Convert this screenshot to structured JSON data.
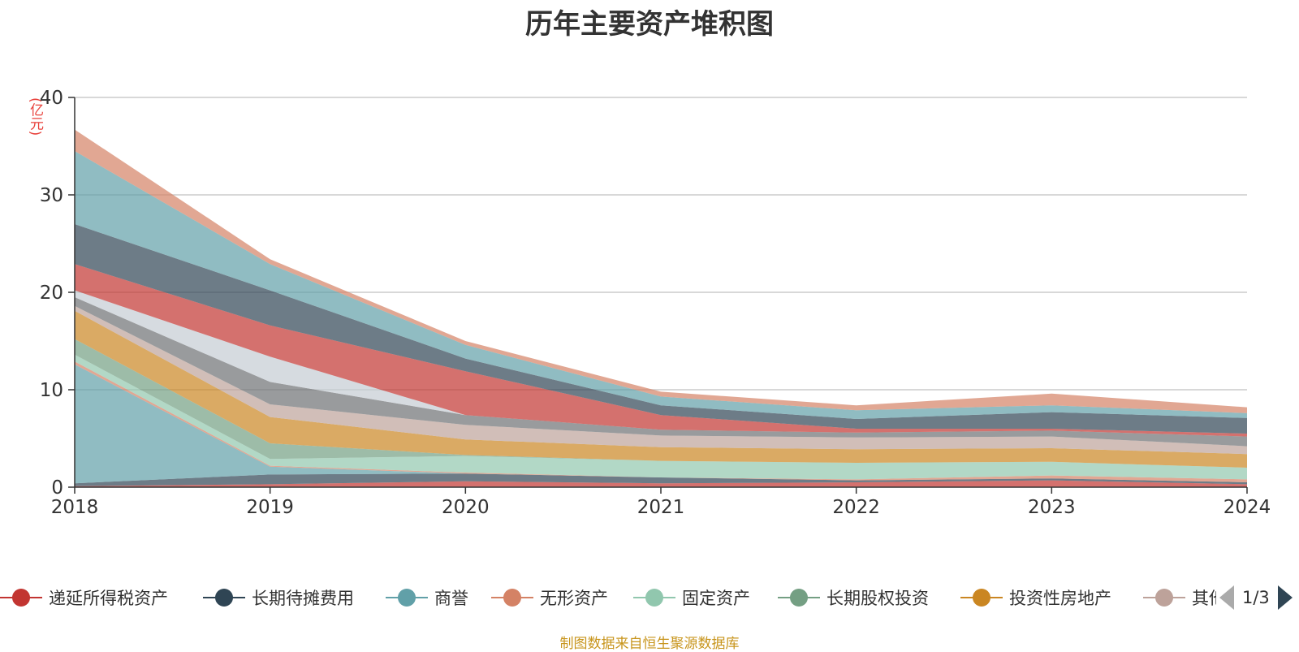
{
  "title": "历年主要资产堆积图",
  "unit": "(亿元)",
  "source": "制图数据来自恒生聚源数据库",
  "legend_page": "1/3",
  "legend": [
    {
      "label": "递延所得税资产",
      "color": "#c23531"
    },
    {
      "label": "长期待摊费用",
      "color": "#2f4554"
    },
    {
      "label": "商誉",
      "color": "#61a0a8"
    },
    {
      "label": "无形资产",
      "color": "#d48265"
    },
    {
      "label": "固定资产",
      "color": "#91c7ae"
    },
    {
      "label": "长期股权投资",
      "color": "#749f83"
    },
    {
      "label": "投资性房地产",
      "color": "#ca8622"
    },
    {
      "label": "其他",
      "color": "#bda29a"
    }
  ],
  "chart_data": {
    "type": "area",
    "stacked": true,
    "title": "历年主要资产堆积图",
    "ylabel": "(亿元)",
    "x": [
      "2018",
      "2019",
      "2020",
      "2021",
      "2022",
      "2023",
      "2024"
    ],
    "ylim": [
      0,
      40
    ],
    "yticks": [
      0,
      10,
      20,
      30,
      40
    ],
    "grid": true,
    "legend_position": "bottom",
    "series": [
      {
        "name": "递延所得税资产",
        "color": "#c23531",
        "values": [
          0.1,
          0.3,
          0.6,
          0.4,
          0.5,
          0.7,
          0.3
        ]
      },
      {
        "name": "长期待摊费用",
        "color": "#2f4554",
        "values": [
          0.3,
          1.0,
          0.8,
          0.6,
          0.2,
          0.2,
          0.2
        ]
      },
      {
        "name": "商誉",
        "color": "#61a0a8",
        "values": [
          12.2,
          0.8,
          0.0,
          0.0,
          0.0,
          0.0,
          0.0
        ]
      },
      {
        "name": "无形资产",
        "color": "#d48265",
        "values": [
          0.3,
          0.1,
          0.1,
          0.0,
          0.1,
          0.3,
          0.3
        ]
      },
      {
        "name": "固定资产",
        "color": "#91c7ae",
        "values": [
          0.7,
          0.7,
          1.7,
          1.7,
          1.7,
          1.4,
          1.2
        ]
      },
      {
        "name": "长期股权投资",
        "color": "#749f83",
        "values": [
          1.6,
          1.6,
          0.1,
          0.0,
          0.0,
          0.0,
          0.0
        ]
      },
      {
        "name": "投资性房地产",
        "color": "#ca8622",
        "values": [
          2.9,
          2.7,
          1.6,
          1.4,
          1.4,
          1.4,
          1.4
        ]
      },
      {
        "name": "",
        "color": "#bda29a",
        "values": [
          0.5,
          1.3,
          1.5,
          1.2,
          1.2,
          1.2,
          0.8
        ]
      },
      {
        "name": "",
        "color": "#6e7074",
        "values": [
          0.9,
          2.3,
          1.0,
          0.6,
          0.5,
          0.6,
          1.0
        ]
      },
      {
        "name": "",
        "color": "#c4ccd3",
        "values": [
          0.7,
          2.6,
          0.0,
          0.0,
          0.0,
          0.0,
          0.0
        ]
      },
      {
        "name": "",
        "color": "#c23531",
        "values": [
          2.7,
          3.2,
          4.5,
          1.5,
          0.4,
          0.2,
          0.3
        ]
      },
      {
        "name": "",
        "color": "#2f4554",
        "values": [
          4.1,
          3.6,
          1.3,
          1.0,
          1.0,
          1.7,
          1.6
        ]
      },
      {
        "name": "",
        "color": "#61a0a8",
        "values": [
          7.5,
          2.7,
          1.4,
          0.9,
          0.9,
          0.7,
          0.5
        ]
      },
      {
        "name": "",
        "color": "#d48265",
        "values": [
          2.2,
          0.5,
          0.4,
          0.5,
          0.5,
          1.2,
          0.6
        ]
      }
    ]
  }
}
